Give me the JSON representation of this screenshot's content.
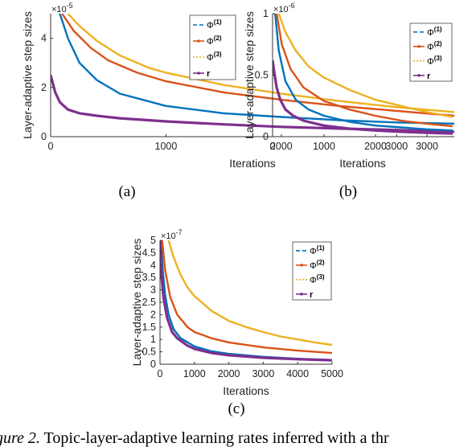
{
  "colors": {
    "phi1": "#0072BD",
    "phi2": "#D95319",
    "phi3": "#EDB120",
    "r": "#7E2F8E"
  },
  "chart_data": [
    {
      "id": "a",
      "type": "line",
      "subfigure_label": "(a)",
      "xlabel": "Iterations",
      "ylabel": "Layer-adaptive step sizes",
      "y_multiplier": "×10",
      "y_exponent": "-5",
      "xlim": [
        0,
        3500
      ],
      "ylim": [
        0,
        5
      ],
      "xticks": [
        0,
        1000,
        2000,
        3000
      ],
      "yticks": [
        0,
        2,
        4
      ],
      "legend_position": "top-right",
      "series": [
        {
          "name": "Φ",
          "sup": "(1)",
          "key": "phi1",
          "style": "dashed",
          "points": [
            [
              0,
              5.2
            ],
            [
              80,
              5.0
            ],
            [
              150,
              4.0
            ],
            [
              250,
              3.0
            ],
            [
              400,
              2.3
            ],
            [
              600,
              1.75
            ],
            [
              1000,
              1.25
            ],
            [
              1500,
              0.95
            ],
            [
              2000,
              0.8
            ],
            [
              2500,
              0.67
            ],
            [
              3000,
              0.58
            ],
            [
              3500,
              0.53
            ]
          ]
        },
        {
          "name": "Φ",
          "sup": "(2)",
          "key": "phi2",
          "style": "dash-dot",
          "points": [
            [
              100,
              5.0
            ],
            [
              200,
              4.3
            ],
            [
              350,
              3.6
            ],
            [
              500,
              3.1
            ],
            [
              750,
              2.6
            ],
            [
              1000,
              2.25
            ],
            [
              1500,
              1.8
            ],
            [
              2000,
              1.5
            ],
            [
              2500,
              1.25
            ],
            [
              3000,
              1.05
            ],
            [
              3500,
              0.85
            ]
          ]
        },
        {
          "name": "Φ",
          "sup": "(3)",
          "key": "phi3",
          "style": "dotted",
          "points": [
            [
              150,
              5.0
            ],
            [
              250,
              4.5
            ],
            [
              400,
              3.9
            ],
            [
              600,
              3.3
            ],
            [
              850,
              2.8
            ],
            [
              1000,
              2.6
            ],
            [
              1500,
              2.1
            ],
            [
              2000,
              1.75
            ],
            [
              2500,
              1.45
            ],
            [
              3000,
              1.2
            ],
            [
              3500,
              1.0
            ]
          ]
        },
        {
          "name": "r",
          "sup": "",
          "key": "r",
          "style": "marker",
          "points": [
            [
              0,
              2.5
            ],
            [
              40,
              1.8
            ],
            [
              80,
              1.4
            ],
            [
              150,
              1.1
            ],
            [
              250,
              0.95
            ],
            [
              400,
              0.85
            ],
            [
              600,
              0.75
            ],
            [
              1000,
              0.62
            ],
            [
              1500,
              0.5
            ],
            [
              2000,
              0.4
            ],
            [
              2500,
              0.33
            ],
            [
              3000,
              0.27
            ],
            [
              3500,
              0.2
            ]
          ]
        }
      ]
    },
    {
      "id": "b",
      "type": "line",
      "subfigure_label": "(b)",
      "xlabel": "Iterations",
      "ylabel": "Layer-adaptive step sizes",
      "y_multiplier": "×10",
      "y_exponent": "-6",
      "xlim": [
        0,
        3500
      ],
      "ylim": [
        0,
        1
      ],
      "xticks": [
        0,
        1000,
        2000,
        3000
      ],
      "yticks": [
        0,
        0.5,
        1
      ],
      "legend_position": "top-right",
      "series": [
        {
          "name": "Φ",
          "sup": "(1)",
          "key": "phi1",
          "style": "dashed",
          "points": [
            [
              50,
              1.0
            ],
            [
              120,
              0.7
            ],
            [
              250,
              0.45
            ],
            [
              450,
              0.3
            ],
            [
              700,
              0.22
            ],
            [
              1000,
              0.17
            ],
            [
              1500,
              0.12
            ],
            [
              2000,
              0.09
            ],
            [
              2500,
              0.075
            ],
            [
              3000,
              0.06
            ],
            [
              3500,
              0.05
            ]
          ]
        },
        {
          "name": "Φ",
          "sup": "(2)",
          "key": "phi2",
          "style": "dash-dot",
          "points": [
            [
              80,
              1.0
            ],
            [
              180,
              0.75
            ],
            [
              350,
              0.55
            ],
            [
              600,
              0.4
            ],
            [
              1000,
              0.29
            ],
            [
              1500,
              0.22
            ],
            [
              2000,
              0.17
            ],
            [
              2500,
              0.13
            ],
            [
              3000,
              0.105
            ],
            [
              3500,
              0.085
            ]
          ]
        },
        {
          "name": "Φ",
          "sup": "(3)",
          "key": "phi3",
          "style": "dotted",
          "points": [
            [
              120,
              1.0
            ],
            [
              250,
              0.85
            ],
            [
              450,
              0.7
            ],
            [
              700,
              0.57
            ],
            [
              1000,
              0.48
            ],
            [
              1500,
              0.38
            ],
            [
              2000,
              0.3
            ],
            [
              2500,
              0.25
            ],
            [
              3000,
              0.2
            ],
            [
              3500,
              0.16
            ]
          ]
        },
        {
          "name": "r",
          "sup": "",
          "key": "r",
          "style": "marker",
          "points": [
            [
              0,
              0.62
            ],
            [
              40,
              0.5
            ],
            [
              80,
              0.4
            ],
            [
              150,
              0.3
            ],
            [
              250,
              0.22
            ],
            [
              400,
              0.17
            ],
            [
              600,
              0.13
            ],
            [
              1000,
              0.09
            ],
            [
              1500,
              0.065
            ],
            [
              2000,
              0.05
            ],
            [
              2500,
              0.04
            ],
            [
              3000,
              0.032
            ],
            [
              3500,
              0.025
            ]
          ]
        }
      ]
    },
    {
      "id": "c",
      "type": "line",
      "subfigure_label": "(c)",
      "xlabel": "Iterations",
      "ylabel": "Layer-adaptive step sizes",
      "y_multiplier": "×10",
      "y_exponent": "-7",
      "xlim": [
        0,
        5000
      ],
      "ylim": [
        0,
        5
      ],
      "xticks": [
        0,
        1000,
        2000,
        3000,
        4000,
        5000
      ],
      "yticks": [
        0,
        0.5,
        1,
        1.5,
        2,
        2.5,
        3,
        3.5,
        4,
        4.5,
        5
      ],
      "legend_position": "top-right",
      "series": [
        {
          "name": "Φ",
          "sup": "(1)",
          "key": "phi1",
          "style": "dashed",
          "points": [
            [
              20,
              5.0
            ],
            [
              80,
              3.8
            ],
            [
              150,
              2.8
            ],
            [
              250,
              2.0
            ],
            [
              400,
              1.4
            ],
            [
              600,
              1.05
            ],
            [
              1000,
              0.72
            ],
            [
              1500,
              0.52
            ],
            [
              2000,
              0.42
            ],
            [
              3000,
              0.3
            ],
            [
              4000,
              0.22
            ],
            [
              5000,
              0.17
            ]
          ]
        },
        {
          "name": "Φ",
          "sup": "(2)",
          "key": "phi2",
          "style": "dash-dot",
          "points": [
            [
              60,
              5.0
            ],
            [
              150,
              3.8
            ],
            [
              300,
              2.7
            ],
            [
              500,
              2.0
            ],
            [
              800,
              1.5
            ],
            [
              1000,
              1.3
            ],
            [
              1500,
              1.05
            ],
            [
              2000,
              0.88
            ],
            [
              3000,
              0.68
            ],
            [
              4000,
              0.55
            ],
            [
              5000,
              0.45
            ]
          ]
        },
        {
          "name": "Φ",
          "sup": "(3)",
          "key": "phi3",
          "style": "dotted",
          "points": [
            [
              250,
              5.0
            ],
            [
              400,
              4.3
            ],
            [
              600,
              3.6
            ],
            [
              800,
              3.1
            ],
            [
              1000,
              2.75
            ],
            [
              1500,
              2.15
            ],
            [
              2000,
              1.75
            ],
            [
              2500,
              1.5
            ],
            [
              3000,
              1.3
            ],
            [
              3500,
              1.12
            ],
            [
              4000,
              1.0
            ],
            [
              4500,
              0.88
            ],
            [
              5000,
              0.78
            ]
          ]
        },
        {
          "name": "r",
          "sup": "",
          "key": "r",
          "style": "marker",
          "points": [
            [
              0,
              5.0
            ],
            [
              50,
              3.5
            ],
            [
              100,
              2.7
            ],
            [
              200,
              1.9
            ],
            [
              350,
              1.3
            ],
            [
              500,
              1.05
            ],
            [
              800,
              0.75
            ],
            [
              1000,
              0.62
            ],
            [
              1500,
              0.45
            ],
            [
              2000,
              0.36
            ],
            [
              3000,
              0.26
            ],
            [
              4000,
              0.2
            ],
            [
              5000,
              0.16
            ]
          ]
        }
      ]
    }
  ],
  "caption": {
    "lead": "gure 2.",
    "text": " Topic-layer-adaptive learning rates inferred with a thr"
  }
}
